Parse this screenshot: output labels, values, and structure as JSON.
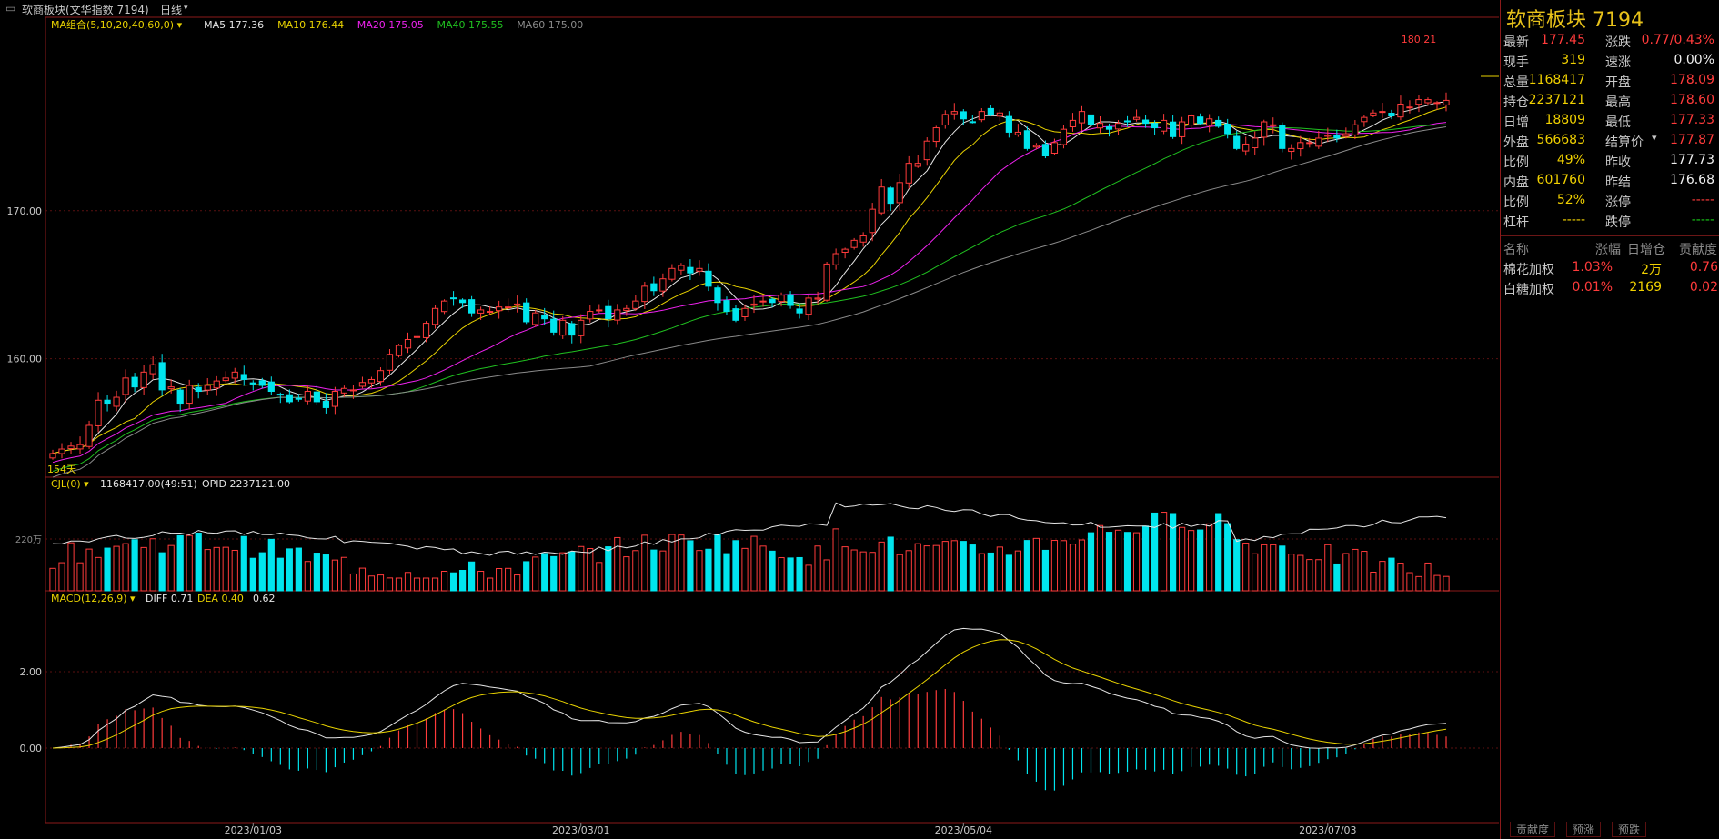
{
  "window": {
    "title": "软商板块(文华指数 7194)",
    "period_label": "日线"
  },
  "main_legend": {
    "combo": "MA组合(5,10,20,40,60,0)",
    "ma5": "MA5 177.36",
    "ma10": "MA10 176.44",
    "ma20": "MA20 175.05",
    "ma40": "MA40 175.55",
    "ma60": "MA60 175.00",
    "days": "154天",
    "peak_label": "180.21"
  },
  "vol_legend": {
    "name": "CJL(0)",
    "values": "1168417.00(49:51)",
    "opid": "OPID 2237121.00",
    "axis_label": "220万"
  },
  "macd_legend": {
    "name": "MACD(12,26,9)",
    "diff": "DIFF 0.71",
    "dea": "DEA 0.40",
    "macd": "0.62"
  },
  "colors": {
    "up": "#ff3b3b",
    "down": "#00e5ee",
    "ma5": "#e6e6e6",
    "ma10": "#e8d200",
    "ma20": "#ee22ee",
    "ma40": "#20c020",
    "ma60": "#8a8a8a",
    "border": "#8b1a1a"
  },
  "chart_data": [
    {
      "type": "candlestick",
      "title": "软商板块 7194",
      "x_ticks": [
        "2023/01/03",
        "2023/03/01",
        "2023/05/04",
        "2023/07/03"
      ],
      "y_ticks": [
        "170.00",
        "160.00"
      ],
      "ylim": [
        152,
        183
      ],
      "grid": true,
      "series": [
        {
          "name": "MA5",
          "last": 177.36
        },
        {
          "name": "MA10",
          "last": 176.44
        },
        {
          "name": "MA20",
          "last": 175.05
        },
        {
          "name": "MA40",
          "last": 175.55
        },
        {
          "name": "MA60",
          "last": 175.0
        }
      ],
      "close_approx": [
        153.6,
        153.9,
        154.1,
        154.2,
        155.5,
        157.2,
        157.0,
        157.4,
        158.7,
        158.1,
        159.1,
        159.6,
        157.9,
        158.1,
        157.0,
        158.2,
        157.8,
        158.2,
        158.5,
        158.7,
        159.1,
        158.6,
        158.3,
        158.2,
        157.8,
        157.6,
        157.1,
        157.3,
        157.8,
        157.1,
        156.7,
        157.8,
        158.0,
        157.9,
        158.4,
        158.6,
        159.2,
        160.3,
        160.9,
        161.3,
        161.5,
        162.4,
        163.4,
        163.9,
        164.1,
        163.8,
        163.1,
        163.3,
        163.2,
        163.5,
        163.5,
        163.7,
        162.5,
        163.1,
        162.7,
        161.8,
        162.6,
        161.6,
        162.6,
        163.2,
        163.3,
        162.7,
        163.3,
        163.4,
        163.9,
        164.9,
        164.6,
        165.4,
        166.1,
        166.3,
        165.8,
        166.1,
        164.9,
        163.8,
        163.2,
        162.6,
        163.4,
        163.7,
        163.9,
        163.8,
        164.3,
        163.6,
        163.1,
        164.1,
        164.1,
        166.4,
        167.1,
        167.4,
        168.0,
        168.3,
        170.1,
        171.6,
        170.5,
        171.9,
        173.2,
        173.2,
        174.7,
        175.6,
        176.5,
        176.7,
        176.2,
        176.0,
        176.7,
        176.5,
        176.6,
        175.3,
        175.3,
        174.2,
        174.4,
        173.7,
        174.6,
        175.5,
        176.1,
        176.7,
        175.8,
        175.9,
        175.5,
        175.9,
        176.0,
        176.3,
        175.9,
        175.6,
        176.1,
        175.0,
        176.0,
        176.4,
        175.9,
        176.2,
        175.7,
        175.2,
        174.2,
        174.5,
        174.9,
        176.0,
        175.8,
        174.2,
        174.2,
        174.6,
        174.6,
        174.9,
        175.1,
        174.9,
        175.2,
        175.8,
        176.3,
        176.6,
        176.7,
        176.4,
        177.2,
        177.0,
        177.5,
        177.5,
        177.3,
        177.45
      ]
    },
    {
      "type": "bar",
      "title": "CJL(0)",
      "note": "volume bars; line = open interest",
      "y_ticks": [
        "220万"
      ]
    },
    {
      "type": "bar",
      "title": "MACD(12,26,9)",
      "y_ticks": [
        "2.00",
        "0.00"
      ],
      "series": [
        {
          "name": "DIFF",
          "last": 0.71
        },
        {
          "name": "DEA",
          "last": 0.4
        },
        {
          "name": "MACD",
          "last": 0.62
        }
      ]
    }
  ],
  "quote": {
    "title": "软商板块  7194",
    "rows": [
      {
        "l1": "最新",
        "v1": "177.45",
        "c1": "red",
        "l2": "涨跌",
        "v2": "0.77/0.43%",
        "c2": "red"
      },
      {
        "l1": "现手",
        "v1": "319",
        "c1": "yel",
        "l2": "速涨",
        "v2": "0.00%",
        "c2": "wht"
      },
      {
        "l1": "总量",
        "v1": "1168417",
        "c1": "yel",
        "l2": "开盘",
        "v2": "178.09",
        "c2": "red"
      },
      {
        "l1": "持仓",
        "v1": "2237121",
        "c1": "yel",
        "l2": "最高",
        "v2": "178.60",
        "c2": "red"
      },
      {
        "l1": "日增",
        "v1": "18809",
        "c1": "yel",
        "l2": "最低",
        "v2": "177.33",
        "c2": "red"
      },
      {
        "l1": "外盘",
        "v1": "566683",
        "c1": "yel",
        "l2": "结算价",
        "v2": "177.87",
        "c2": "red"
      },
      {
        "l1": "比例",
        "v1": "49%",
        "c1": "yel",
        "l2": "昨收",
        "v2": "177.73",
        "c2": "wht"
      },
      {
        "l1": "内盘",
        "v1": "601760",
        "c1": "yel",
        "l2": "昨结",
        "v2": "176.68",
        "c2": "wht"
      },
      {
        "l1": "比例",
        "v1": "52%",
        "c1": "yel",
        "l2": "涨停",
        "v2": "-----",
        "c2": "red"
      },
      {
        "l1": "杠杆",
        "v1": "-----",
        "c1": "yel",
        "l2": "跌停",
        "v2": "-----",
        "c2": "grn"
      }
    ],
    "table_headers": [
      "名称",
      "涨幅",
      "日增仓",
      "贡献度"
    ],
    "table_rows": [
      {
        "name": "棉花加权",
        "change": "1.03%",
        "oi": "2万",
        "contrib": "0.76"
      },
      {
        "name": "白糖加权",
        "change": "0.01%",
        "oi": "2169",
        "contrib": "0.02"
      }
    ]
  },
  "bottom_tabs": [
    "贡献度",
    "预涨",
    "预跌"
  ]
}
